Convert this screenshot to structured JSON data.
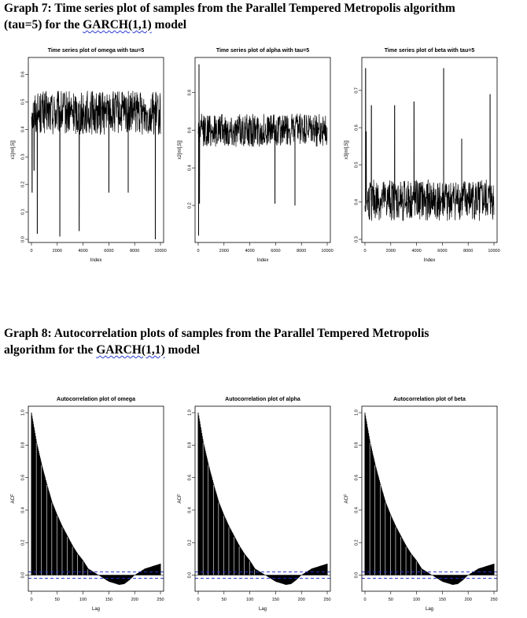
{
  "graph7": {
    "line1": "Graph 7: Time series plot of samples from the Parallel Tempered Metropolis algorithm",
    "line2_pre": "(tau=5) for the ",
    "line2_link": "GARCH(1,1)",
    "line2_post": " model"
  },
  "graph8": {
    "line1": "Graph 8: Autocorrelation plots of samples from the Parallel Tempered Metropolis",
    "line2_pre": "algorithm for the ",
    "line2_link": "GARCH(1,1)",
    "line2_post": " model"
  },
  "chart_data": [
    {
      "type": "line",
      "title": "Time series plot of omega with tau=5",
      "xlabel": "Index",
      "ylabel": "x1[ml[,5]]",
      "xlim": [
        0,
        10000
      ],
      "ylim": [
        0,
        0.65
      ],
      "x_ticks": [
        "0",
        "2000",
        "4000",
        "6000",
        "8000",
        "10000"
      ],
      "y_ticks": [
        "0.0",
        "0.1",
        "0.2",
        "0.3",
        "0.4",
        "0.5",
        "0.6"
      ],
      "y_tick_values": [
        0,
        0.1,
        0.2,
        0.3,
        0.4,
        0.5,
        0.6
      ],
      "center": 0.46,
      "noise": 0.05,
      "bounds": [
        0.38,
        0.64
      ],
      "spikes": [
        {
          "x": 50,
          "y": 0.17
        },
        {
          "x": 200,
          "y": 0.25
        },
        {
          "x": 450,
          "y": 0.02
        },
        {
          "x": 2200,
          "y": 0.01
        },
        {
          "x": 3700,
          "y": 0.03
        },
        {
          "x": 6000,
          "y": 0.17
        },
        {
          "x": 7500,
          "y": 0.17
        },
        {
          "x": 9600,
          "y": 0.0
        }
      ]
    },
    {
      "type": "line",
      "title": "Time series plot of alpha with tau=5",
      "xlabel": "Index",
      "ylabel": "x2[ml[,5]]",
      "xlim": [
        0,
        10000
      ],
      "ylim": [
        0.02,
        0.97
      ],
      "x_ticks": [
        "0",
        "2000",
        "4000",
        "6000",
        "8000",
        "10000"
      ],
      "y_ticks": [
        "0.2",
        "0.4",
        "0.6",
        "0.8"
      ],
      "y_tick_values": [
        0.2,
        0.4,
        0.6,
        0.8
      ],
      "center": 0.6,
      "noise": 0.055,
      "bounds": [
        0.46,
        0.78
      ],
      "spikes": [
        {
          "x": 30,
          "y": 0.04
        },
        {
          "x": 60,
          "y": 0.95
        },
        {
          "x": 100,
          "y": 0.21
        },
        {
          "x": 5950,
          "y": 0.21
        },
        {
          "x": 7500,
          "y": 0.2
        }
      ]
    },
    {
      "type": "line",
      "title": "Time series plot of beta with tau=5",
      "xlabel": "Index",
      "ylabel": "x3[ml[,5]]",
      "xlim": [
        0,
        10000
      ],
      "ylim": [
        0.3,
        0.78
      ],
      "x_ticks": [
        "0",
        "2000",
        "4000",
        "6000",
        "8000",
        "10000"
      ],
      "y_ticks": [
        "0.3",
        "0.4",
        "0.5",
        "0.6",
        "0.7"
      ],
      "y_tick_values": [
        0.3,
        0.4,
        0.5,
        0.6,
        0.7
      ],
      "center": 0.405,
      "noise": 0.035,
      "bounds": [
        0.31,
        0.48
      ],
      "spikes": [
        {
          "x": 50,
          "y": 0.76
        },
        {
          "x": 100,
          "y": 0.59
        },
        {
          "x": 500,
          "y": 0.66
        },
        {
          "x": 2300,
          "y": 0.66
        },
        {
          "x": 3800,
          "y": 0.67
        },
        {
          "x": 6100,
          "y": 0.76
        },
        {
          "x": 7500,
          "y": 0.57
        },
        {
          "x": 9700,
          "y": 0.69
        }
      ]
    },
    {
      "type": "bar",
      "title": "Autocorrelation plot of omega",
      "xlabel": "Lag",
      "ylabel": "ACF",
      "xlim": [
        0,
        250
      ],
      "ylim": [
        -0.08,
        1.02
      ],
      "x_ticks": [
        "0",
        "50",
        "100",
        "150",
        "200",
        "250"
      ],
      "y_ticks": [
        "0.0",
        "0.2",
        "0.4",
        "0.6",
        "0.8",
        "1.0"
      ],
      "y_tick_values": [
        0,
        0.2,
        0.4,
        0.6,
        0.8,
        1.0
      ],
      "ci": 0.02,
      "lags": [
        0,
        10,
        20,
        30,
        40,
        50,
        60,
        70,
        80,
        90,
        100,
        110,
        120,
        130,
        140,
        150,
        160,
        170,
        180,
        190,
        200,
        210,
        220,
        230,
        240,
        250
      ],
      "acf": [
        1.0,
        0.82,
        0.68,
        0.56,
        0.45,
        0.37,
        0.3,
        0.24,
        0.18,
        0.13,
        0.09,
        0.04,
        0.02,
        0.0,
        -0.02,
        -0.04,
        -0.05,
        -0.06,
        -0.055,
        -0.03,
        0.0,
        0.02,
        0.04,
        0.05,
        0.06,
        0.07
      ]
    },
    {
      "type": "bar",
      "title": "Autocorrelation plot of alpha",
      "xlabel": "Lag",
      "ylabel": "ACF",
      "xlim": [
        0,
        250
      ],
      "ylim": [
        -0.08,
        1.02
      ],
      "x_ticks": [
        "0",
        "50",
        "100",
        "150",
        "200",
        "250"
      ],
      "y_ticks": [
        "0.0",
        "0.2",
        "0.4",
        "0.6",
        "0.8",
        "1.0"
      ],
      "y_tick_values": [
        0,
        0.2,
        0.4,
        0.6,
        0.8,
        1.0
      ],
      "ci": 0.02,
      "lags": [
        0,
        10,
        20,
        30,
        40,
        50,
        60,
        70,
        80,
        90,
        100,
        110,
        120,
        130,
        140,
        150,
        160,
        170,
        180,
        190,
        200,
        210,
        220,
        230,
        240,
        250
      ],
      "acf": [
        1.0,
        0.82,
        0.68,
        0.56,
        0.45,
        0.37,
        0.3,
        0.24,
        0.18,
        0.13,
        0.09,
        0.04,
        0.02,
        0.0,
        -0.02,
        -0.04,
        -0.05,
        -0.06,
        -0.055,
        -0.03,
        0.0,
        0.02,
        0.04,
        0.05,
        0.06,
        0.07
      ]
    },
    {
      "type": "bar",
      "title": "Autocorrelation plot of beta",
      "xlabel": "Lag",
      "ylabel": "ACF",
      "xlim": [
        0,
        250
      ],
      "ylim": [
        -0.08,
        1.02
      ],
      "x_ticks": [
        "0",
        "50",
        "100",
        "150",
        "200",
        "250"
      ],
      "y_ticks": [
        "0.0",
        "0.2",
        "0.4",
        "0.6",
        "0.8",
        "1.0"
      ],
      "y_tick_values": [
        0,
        0.2,
        0.4,
        0.6,
        0.8,
        1.0
      ],
      "ci": 0.02,
      "lags": [
        0,
        10,
        20,
        30,
        40,
        50,
        60,
        70,
        80,
        90,
        100,
        110,
        120,
        130,
        140,
        150,
        160,
        170,
        180,
        190,
        200,
        210,
        220,
        230,
        240,
        250
      ],
      "acf": [
        1.0,
        0.82,
        0.68,
        0.56,
        0.45,
        0.37,
        0.3,
        0.24,
        0.18,
        0.13,
        0.09,
        0.04,
        0.02,
        0.0,
        -0.02,
        -0.04,
        -0.05,
        -0.06,
        -0.055,
        -0.03,
        0.0,
        0.02,
        0.04,
        0.05,
        0.06,
        0.07
      ]
    }
  ]
}
